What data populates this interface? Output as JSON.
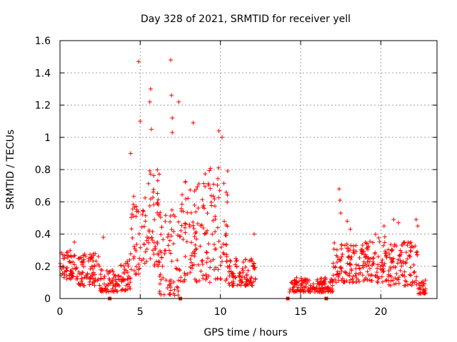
{
  "chart_data": {
    "type": "scatter",
    "title": "Day 328 of 2021, SRMTID for receiver yell",
    "xlabel": "GPS time / hours",
    "ylabel": "SRMTID / TECUs",
    "xlim": [
      0,
      23.5
    ],
    "ylim": [
      0,
      1.6
    ],
    "xticks": [
      0,
      5,
      10,
      15,
      20
    ],
    "xtick_labels": [
      "0",
      "5",
      "10",
      "15",
      "20"
    ],
    "yticks": [
      0,
      0.2,
      0.4,
      0.6,
      0.8,
      1.0,
      1.2,
      1.4,
      1.6
    ],
    "ytick_labels": [
      "0",
      "0.2",
      "0.4",
      "0.6",
      "0.8",
      "1",
      "1.2",
      "1.4",
      "1.6"
    ],
    "grid": true,
    "marker": "+",
    "color": "#ff0000",
    "series": [
      {
        "name": "SRMTID",
        "segments": [
          {
            "start": 0.0,
            "end": 1.0,
            "lo": 0.12,
            "hi": 0.3
          },
          {
            "start": 1.0,
            "end": 2.5,
            "lo": 0.08,
            "hi": 0.28
          },
          {
            "start": 2.5,
            "end": 3.7,
            "lo": 0.04,
            "hi": 0.18
          },
          {
            "start": 3.7,
            "end": 4.4,
            "lo": 0.05,
            "hi": 0.25
          },
          {
            "start": 4.4,
            "end": 5.0,
            "lo": 0.15,
            "hi": 0.65
          },
          {
            "start": 5.0,
            "end": 6.2,
            "lo": 0.2,
            "hi": 0.8
          },
          {
            "start": 6.2,
            "end": 7.5,
            "lo": 0.02,
            "hi": 0.6
          },
          {
            "start": 7.5,
            "end": 9.0,
            "lo": 0.1,
            "hi": 0.75
          },
          {
            "start": 9.0,
            "end": 10.5,
            "lo": 0.1,
            "hi": 0.85
          },
          {
            "start": 10.5,
            "end": 12.2,
            "lo": 0.08,
            "hi": 0.25
          },
          {
            "start": 14.3,
            "end": 17.0,
            "lo": 0.04,
            "hi": 0.13
          },
          {
            "start": 17.0,
            "end": 19.0,
            "lo": 0.1,
            "hi": 0.35
          },
          {
            "start": 19.0,
            "end": 20.5,
            "lo": 0.1,
            "hi": 0.4
          },
          {
            "start": 20.5,
            "end": 22.3,
            "lo": 0.08,
            "hi": 0.35
          },
          {
            "start": 22.3,
            "end": 22.8,
            "lo": 0.03,
            "hi": 0.12
          }
        ],
        "peaks": [
          {
            "x": 4.9,
            "y": 1.47
          },
          {
            "x": 5.0,
            "y": 1.1
          },
          {
            "x": 5.65,
            "y": 1.3
          },
          {
            "x": 5.6,
            "y": 1.22
          },
          {
            "x": 5.7,
            "y": 1.05
          },
          {
            "x": 6.9,
            "y": 1.48
          },
          {
            "x": 6.95,
            "y": 1.26
          },
          {
            "x": 7.0,
            "y": 1.12
          },
          {
            "x": 7.0,
            "y": 1.03
          },
          {
            "x": 7.4,
            "y": 1.22
          },
          {
            "x": 8.3,
            "y": 1.09
          },
          {
            "x": 9.9,
            "y": 1.04
          },
          {
            "x": 10.1,
            "y": 1.0
          },
          {
            "x": 4.4,
            "y": 0.9
          },
          {
            "x": 12.1,
            "y": 0.4
          },
          {
            "x": 17.4,
            "y": 0.68
          },
          {
            "x": 17.45,
            "y": 0.61
          },
          {
            "x": 17.5,
            "y": 0.53
          },
          {
            "x": 17.9,
            "y": 0.48
          },
          {
            "x": 18.1,
            "y": 0.43
          },
          {
            "x": 20.2,
            "y": 0.45
          },
          {
            "x": 20.8,
            "y": 0.49
          },
          {
            "x": 21.1,
            "y": 0.47
          },
          {
            "x": 22.2,
            "y": 0.49
          },
          {
            "x": 22.3,
            "y": 0.45
          },
          {
            "x": 2.7,
            "y": 0.38
          },
          {
            "x": 0.9,
            "y": 0.35
          }
        ],
        "gap_markers": [
          3.1,
          7.5,
          14.2,
          16.6
        ]
      }
    ]
  }
}
